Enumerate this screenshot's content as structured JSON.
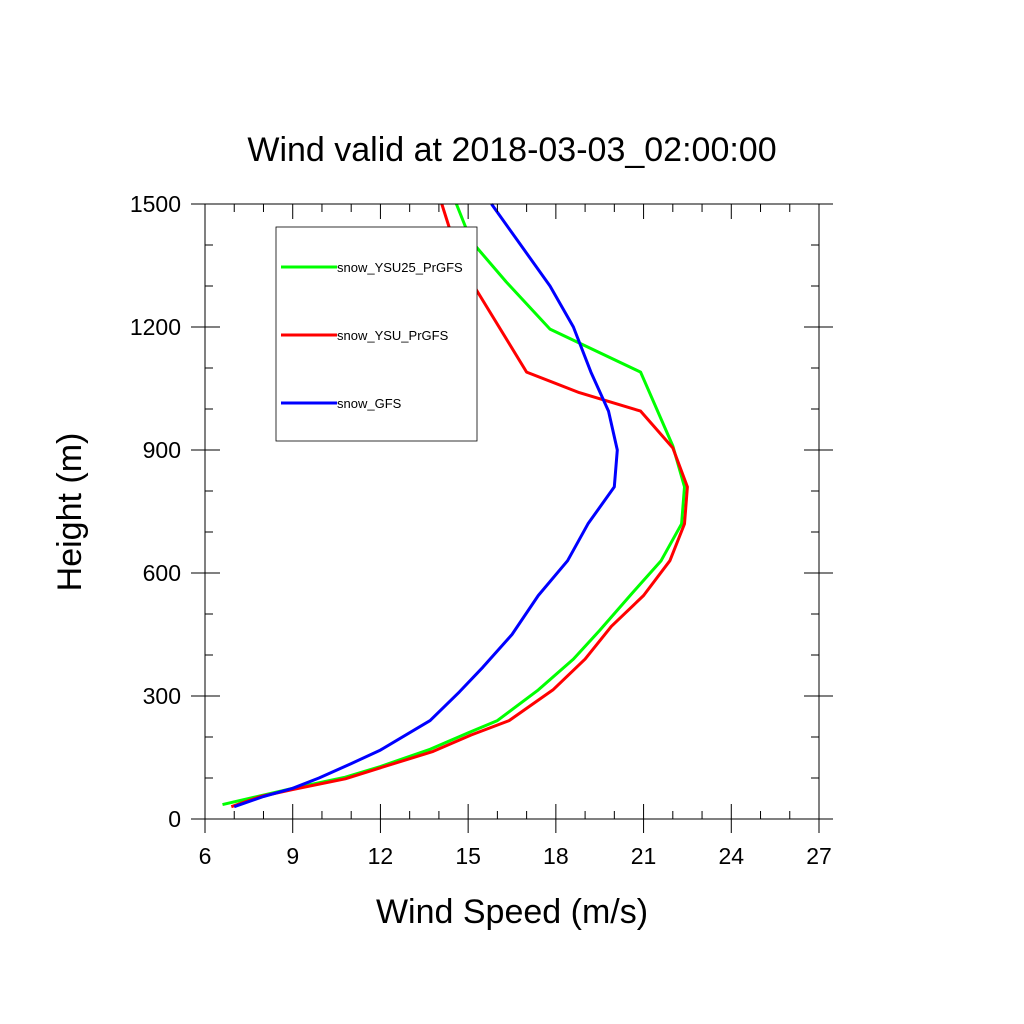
{
  "chart_data": {
    "type": "line",
    "title": "Wind valid at 2018-03-03_02:00:00",
    "xlabel": "Wind Speed (m/s)",
    "ylabel": "Height (m)",
    "xlim": [
      6,
      27
    ],
    "ylim": [
      0,
      1500
    ],
    "xticks": [
      6,
      9,
      12,
      15,
      18,
      21,
      24,
      27
    ],
    "yticks": [
      0,
      300,
      600,
      900,
      1200,
      1500
    ],
    "x_minor_step": 1,
    "y_minor_step": 100,
    "grid": false,
    "legend_placement": "top-left",
    "series": [
      {
        "name": "snow_YSU25_PrGFS",
        "color": "#00ff00",
        "points": [
          [
            6.6,
            35
          ],
          [
            7.8,
            55
          ],
          [
            9.0,
            75
          ],
          [
            10.8,
            102
          ],
          [
            12.0,
            128
          ],
          [
            13.7,
            170
          ],
          [
            15.0,
            210
          ],
          [
            16.0,
            240
          ],
          [
            17.4,
            315
          ],
          [
            18.6,
            390
          ],
          [
            19.5,
            460
          ],
          [
            20.6,
            550
          ],
          [
            21.6,
            630
          ],
          [
            22.3,
            720
          ],
          [
            22.4,
            810
          ],
          [
            22.0,
            910
          ],
          [
            20.9,
            1090
          ],
          [
            17.8,
            1195
          ],
          [
            16.3,
            1310
          ],
          [
            15.1,
            1410
          ],
          [
            14.6,
            1500
          ]
        ]
      },
      {
        "name": "snow_YSU_PrGFS",
        "color": "#ff0000",
        "points": [
          [
            6.9,
            30
          ],
          [
            7.9,
            55
          ],
          [
            9.0,
            72
          ],
          [
            10.8,
            98
          ],
          [
            12.0,
            125
          ],
          [
            13.8,
            165
          ],
          [
            15.1,
            205
          ],
          [
            16.4,
            240
          ],
          [
            17.9,
            315
          ],
          [
            19.0,
            390
          ],
          [
            19.9,
            470
          ],
          [
            21.0,
            545
          ],
          [
            21.9,
            630
          ],
          [
            22.4,
            720
          ],
          [
            22.5,
            810
          ],
          [
            22.0,
            905
          ],
          [
            20.9,
            995
          ],
          [
            18.8,
            1040
          ],
          [
            17.0,
            1090
          ],
          [
            15.2,
            1300
          ],
          [
            14.5,
            1410
          ],
          [
            14.1,
            1500
          ]
        ]
      },
      {
        "name": "snow_GFS",
        "color": "#0000ff",
        "points": [
          [
            7.0,
            30
          ],
          [
            8.0,
            55
          ],
          [
            9.0,
            75
          ],
          [
            9.9,
            100
          ],
          [
            11.0,
            135
          ],
          [
            12.0,
            168
          ],
          [
            13.7,
            240
          ],
          [
            14.7,
            310
          ],
          [
            15.5,
            370
          ],
          [
            16.5,
            450
          ],
          [
            17.4,
            545
          ],
          [
            18.4,
            630
          ],
          [
            19.1,
            720
          ],
          [
            20.0,
            810
          ],
          [
            20.1,
            900
          ],
          [
            19.8,
            995
          ],
          [
            19.2,
            1090
          ],
          [
            18.6,
            1200
          ],
          [
            17.8,
            1300
          ],
          [
            16.7,
            1410
          ],
          [
            15.8,
            1500
          ]
        ]
      }
    ]
  }
}
